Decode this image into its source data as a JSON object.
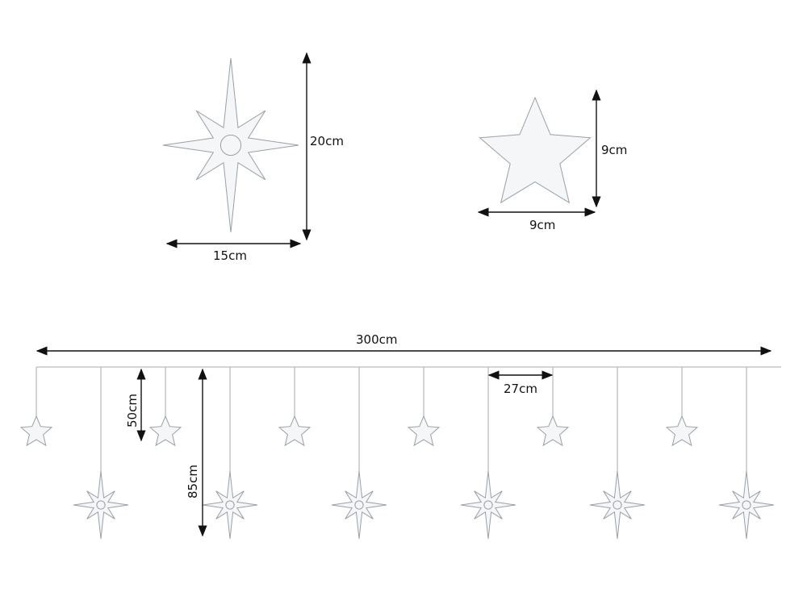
{
  "dimensions": {
    "big_star_height": "20cm",
    "big_star_width": "15cm",
    "small_star_height": "9cm",
    "small_star_width": "9cm",
    "total_length": "300cm",
    "short_drop": "50cm",
    "long_drop": "85cm",
    "spacing": "27cm"
  },
  "strand": {
    "pattern": [
      "small",
      "big",
      "small",
      "big",
      "small",
      "big",
      "small",
      "big",
      "small",
      "big",
      "small",
      "big"
    ]
  },
  "colors": {
    "star_fill": "#f4f6f8",
    "star_outline": "#9aa0a6",
    "wire": "#b8bcc0",
    "arrow": "#111111"
  }
}
